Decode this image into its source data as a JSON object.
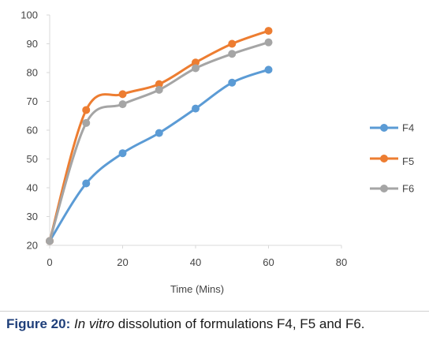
{
  "chart_data": {
    "type": "line",
    "x": [
      0,
      10,
      20,
      30,
      40,
      50,
      60
    ],
    "series": [
      {
        "name": "F4",
        "values": [
          21.5,
          41.5,
          52,
          59,
          67.5,
          76.5,
          81
        ],
        "color": "#5b9bd5"
      },
      {
        "name": "F5",
        "values": [
          21.5,
          67,
          72.5,
          76,
          83.5,
          90,
          94.5
        ],
        "color": "#ed7d31"
      },
      {
        "name": "F6",
        "values": [
          21.5,
          62.5,
          69,
          74,
          81.5,
          86.5,
          90.5
        ],
        "color": "#a5a5a5"
      }
    ],
    "xlabel": "Time (Mins)",
    "ylabel": "",
    "xlim": [
      0,
      80
    ],
    "ylim": [
      20,
      100
    ],
    "xticks": [
      0,
      20,
      40,
      60,
      80
    ],
    "yticks": [
      20,
      30,
      40,
      50,
      60,
      70,
      80,
      90,
      100
    ],
    "grid": false,
    "legend_position": "right",
    "axis_color": "#d9d9d9"
  },
  "caption": {
    "label": "Figure 20:",
    "italic": "In vitro",
    "rest": "dissolution of formulations F4, F5 and F6."
  }
}
